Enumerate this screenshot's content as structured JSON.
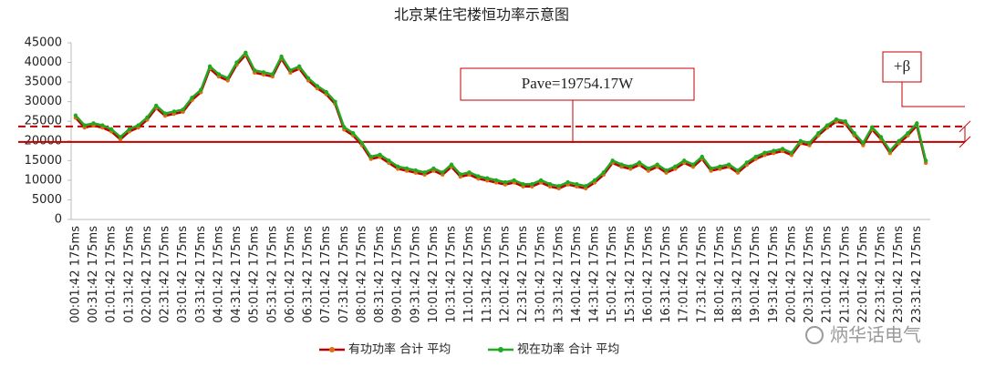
{
  "chart_data": {
    "type": "line",
    "title": "北京某住宅楼恒功率示意图",
    "categories": [
      "00:01:42 175ms",
      null,
      "00:31:42 175ms",
      null,
      "01:01:42 175ms",
      null,
      "01:31:42 175ms",
      null,
      "02:01:42 175ms",
      null,
      "02:31:42 175ms",
      null,
      "03:01:42 175ms",
      null,
      "03:31:42 175ms",
      null,
      "04:01:42 175ms",
      null,
      "04:31:42 175ms",
      null,
      "05:01:42 175ms",
      null,
      "05:31:42 175ms",
      null,
      "06:01:42 175ms",
      null,
      "06:31:42 175ms",
      null,
      "07:01:42 175ms",
      null,
      "07:31:42 175ms",
      null,
      "08:01:42 175ms",
      null,
      "08:31:42 175ms",
      null,
      "09:01:42 175ms",
      null,
      "09:31:42 175ms",
      null,
      "10:01:42 175ms",
      null,
      "10:31:42 175ms",
      null,
      "11:01:42 175ms",
      null,
      "11:31:42 175ms",
      null,
      "12:01:42 175ms",
      null,
      "12:31:42 175ms",
      null,
      "13:01:42 175ms",
      null,
      "13:31:42 175ms",
      null,
      "14:01:42 175ms",
      null,
      "14:31:42 175ms",
      null,
      "15:01:42 175ms",
      null,
      "15:31:42 175ms",
      null,
      "16:01:42 175ms",
      null,
      "16:31:42 175ms",
      null,
      "17:01:42 175ms",
      null,
      "17:31:42 175ms",
      null,
      "18:01:42 175ms",
      null,
      "18:31:42 175ms",
      null,
      "19:01:42 175ms",
      null,
      "19:31:42 175ms",
      null,
      "20:01:42 175ms",
      null,
      "20:31:42 175ms",
      null,
      "21:01:42 175ms",
      null,
      "21:31:42 175ms",
      null,
      "22:01:42 175ms",
      null,
      "22:31:42 175ms",
      null,
      "23:01:42 175ms",
      null,
      "23:31:42 175ms",
      null
    ],
    "series": [
      {
        "name": "有功功率 合计 平均",
        "color": "#e46c0a",
        "line_color": "#c00000",
        "values": [
          25900,
          23400,
          23900,
          23400,
          22400,
          20400,
          22400,
          23400,
          25400,
          28400,
          26400,
          26900,
          27400,
          30400,
          32400,
          38400,
          36400,
          35400,
          39400,
          41900,
          37400,
          36900,
          36400,
          40900,
          37400,
          38400,
          35400,
          33400,
          31900,
          29400,
          22900,
          21400,
          18900,
          15400,
          15900,
          14400,
          12900,
          12400,
          11900,
          11400,
          12400,
          11400,
          13400,
          10900,
          11400,
          10400,
          9900,
          9400,
          8900,
          9400,
          8400,
          8400,
          9400,
          8400,
          7900,
          8900,
          8400,
          7900,
          9400,
          11400,
          14400,
          13400,
          12900,
          13900,
          12400,
          13400,
          11900,
          12900,
          14400,
          13400,
          15400,
          12400,
          12900,
          13400,
          11900,
          13900,
          15400,
          16400,
          16900,
          17400,
          16400,
          19400,
          18900,
          21400,
          23400,
          24900,
          24400,
          21400,
          18900,
          22900,
          20400,
          16900,
          19400,
          21400,
          23900,
          14400
        ]
      },
      {
        "name": "视在功率 合计 平均",
        "color": "#22a822",
        "line_color": "#22a822",
        "values": [
          26500,
          24000,
          24500,
          24000,
          23000,
          21000,
          23000,
          24000,
          26000,
          29000,
          27000,
          27500,
          28000,
          31000,
          33000,
          39000,
          37000,
          36000,
          40000,
          42500,
          38000,
          37500,
          37000,
          41500,
          38000,
          39000,
          36000,
          34000,
          32500,
          30000,
          23500,
          22000,
          19500,
          16000,
          16500,
          15000,
          13500,
          13000,
          12500,
          12000,
          13000,
          12000,
          14000,
          11500,
          12000,
          11000,
          10500,
          10000,
          9500,
          10000,
          9000,
          9000,
          10000,
          9000,
          8500,
          9500,
          9000,
          8500,
          10000,
          12000,
          15000,
          14000,
          13500,
          14500,
          13000,
          14000,
          12500,
          13500,
          15000,
          14000,
          16000,
          13000,
          13500,
          14000,
          12500,
          14500,
          16000,
          17000,
          17500,
          18000,
          17000,
          20000,
          19500,
          22000,
          24000,
          25500,
          25000,
          22000,
          19500,
          23500,
          21000,
          17500,
          20000,
          22000,
          24500,
          15000
        ]
      }
    ],
    "ylim": [
      0,
      45000
    ],
    "yticks": [
      0,
      5000,
      10000,
      15000,
      20000,
      25000,
      30000,
      35000,
      40000,
      45000
    ],
    "reference_lines": [
      {
        "value": 19754.17,
        "style": "solid",
        "color": "#c00000"
      },
      {
        "value": 23700,
        "style": "dashed",
        "color": "#c00000"
      }
    ],
    "annotations": [
      {
        "text": "Pave=19754.17W"
      },
      {
        "text": "+β"
      }
    ],
    "legend": "bottom",
    "watermark": "炳华话电气"
  }
}
